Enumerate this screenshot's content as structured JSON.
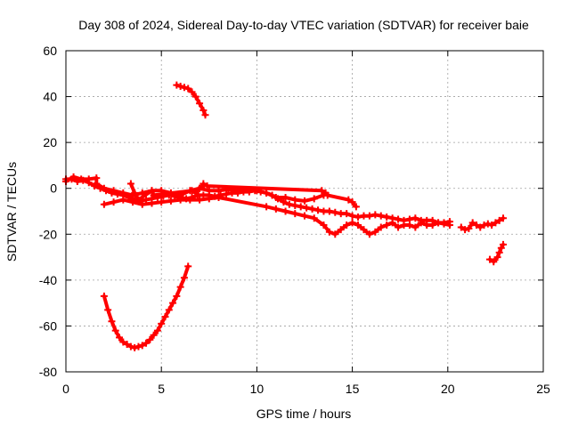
{
  "chart_data": {
    "type": "scatter",
    "title": "Day 308 of 2024, Sidereal Day-to-day VTEC variation (SDTVAR) for receiver baie",
    "xlabel": "GPS time / hours",
    "ylabel": "SDTVAR / TECUs",
    "xlim": [
      0,
      25
    ],
    "ylim": [
      -80,
      60
    ],
    "grid": true,
    "x_ticks": [
      0,
      5,
      10,
      15,
      20,
      25
    ],
    "y_ticks": [
      -80,
      -60,
      -40,
      -20,
      0,
      20,
      40,
      60
    ],
    "marker_color": "#ff0000",
    "series": [
      {
        "name": "main-band",
        "points": [
          [
            0.0,
            4
          ],
          [
            0.3,
            4
          ],
          [
            0.6,
            3
          ],
          [
            0.9,
            3.5
          ],
          [
            1.2,
            2.5
          ],
          [
            1.5,
            1
          ],
          [
            1.8,
            0
          ],
          [
            2.1,
            -1
          ],
          [
            2.4,
            -2
          ],
          [
            2.7,
            -2.5
          ],
          [
            3.0,
            -3
          ],
          [
            3.3,
            -4
          ],
          [
            3.6,
            -5
          ],
          [
            3.9,
            -5.5
          ],
          [
            4.2,
            -5
          ],
          [
            4.5,
            -4.5
          ],
          [
            4.8,
            -4
          ],
          [
            5.1,
            -3.5
          ],
          [
            5.4,
            -3
          ],
          [
            5.7,
            -3.5
          ],
          [
            6.0,
            -4
          ],
          [
            6.3,
            -4.5
          ],
          [
            6.6,
            -4
          ],
          [
            6.9,
            -3
          ],
          [
            7.2,
            -3
          ],
          [
            7.5,
            -3
          ],
          [
            7.8,
            -3.5
          ],
          [
            8.1,
            -3
          ],
          [
            8.4,
            -2.5
          ],
          [
            8.7,
            -2
          ],
          [
            9.0,
            -2
          ],
          [
            9.3,
            -1.5
          ],
          [
            9.6,
            -1.5
          ],
          [
            9.9,
            -1
          ],
          [
            10.2,
            -1.5
          ],
          [
            10.5,
            -2
          ],
          [
            10.8,
            -3
          ],
          [
            11.1,
            -4.5
          ],
          [
            11.4,
            -6
          ],
          [
            11.7,
            -7
          ],
          [
            12.0,
            -7.5
          ],
          [
            12.3,
            -8
          ],
          [
            12.6,
            -8.5
          ],
          [
            12.9,
            -9
          ],
          [
            13.2,
            -9.5
          ],
          [
            13.5,
            -10
          ],
          [
            13.8,
            -10
          ],
          [
            14.1,
            -10.5
          ],
          [
            14.4,
            -11
          ],
          [
            14.7,
            -11
          ],
          [
            15.0,
            -12
          ],
          [
            15.3,
            -12.5
          ],
          [
            15.6,
            -12
          ],
          [
            15.9,
            -12
          ],
          [
            16.2,
            -11.5
          ],
          [
            16.5,
            -12
          ],
          [
            16.8,
            -12.5
          ],
          [
            17.1,
            -13
          ],
          [
            17.4,
            -13.5
          ],
          [
            17.7,
            -14
          ],
          [
            18.0,
            -13.5
          ],
          [
            18.3,
            -13
          ],
          [
            18.6,
            -14
          ],
          [
            18.9,
            -14
          ],
          [
            19.2,
            -14
          ],
          [
            19.5,
            -15
          ],
          [
            19.8,
            -15
          ],
          [
            20.1,
            -14.5
          ]
        ]
      },
      {
        "name": "upper-band",
        "points": [
          [
            0.0,
            3
          ],
          [
            0.4,
            5
          ],
          [
            0.8,
            4
          ],
          [
            1.2,
            4
          ],
          [
            1.6,
            4.5
          ],
          [
            1.6,
            2
          ],
          [
            2.0,
            0
          ],
          [
            2.5,
            -1
          ],
          [
            3.0,
            -2
          ],
          [
            3.5,
            -3
          ],
          [
            4.0,
            -2
          ],
          [
            4.5,
            -1
          ],
          [
            5.0,
            -1
          ],
          [
            5.5,
            -2
          ],
          [
            6.0,
            -3
          ],
          [
            6.5,
            -1
          ],
          [
            7.0,
            0
          ],
          [
            7.5,
            -1
          ],
          [
            8.0,
            -1
          ],
          [
            8.5,
            -0.5
          ],
          [
            9.0,
            -1
          ],
          [
            9.5,
            -0.5
          ],
          [
            10.0,
            -1
          ],
          [
            10.5,
            -2
          ],
          [
            11.0,
            -4
          ],
          [
            11.5,
            -4
          ],
          [
            12.0,
            -5
          ],
          [
            12.5,
            -5.5
          ],
          [
            13.0,
            -4.5
          ],
          [
            13.5,
            -3
          ]
        ]
      },
      {
        "name": "lower-band",
        "points": [
          [
            2.0,
            -7
          ],
          [
            2.5,
            -6
          ],
          [
            3.0,
            -5
          ],
          [
            3.5,
            -6
          ],
          [
            4.0,
            -7
          ],
          [
            4.5,
            -6.5
          ],
          [
            5.0,
            -6
          ],
          [
            5.5,
            -5.5
          ],
          [
            6.0,
            -5
          ],
          [
            6.5,
            -5
          ],
          [
            7.0,
            -5
          ],
          [
            7.5,
            -4.5
          ],
          [
            8.0,
            -4
          ],
          [
            10.5,
            -8
          ],
          [
            11.0,
            -9
          ],
          [
            11.5,
            -10
          ],
          [
            12.0,
            -11
          ],
          [
            12.5,
            -12
          ],
          [
            13.0,
            -13
          ],
          [
            13.5,
            -16
          ],
          [
            13.8,
            -19
          ],
          [
            14.1,
            -20
          ],
          [
            14.4,
            -18
          ],
          [
            14.7,
            -16
          ],
          [
            15.0,
            -15
          ],
          [
            15.3,
            -16
          ],
          [
            15.6,
            -18
          ],
          [
            15.9,
            -20
          ],
          [
            16.2,
            -19
          ],
          [
            16.5,
            -17
          ],
          [
            16.8,
            -16
          ],
          [
            17.1,
            -15
          ],
          [
            17.4,
            -17
          ],
          [
            17.7,
            -16
          ],
          [
            18.0,
            -16
          ],
          [
            18.3,
            -17
          ],
          [
            18.6,
            -15
          ],
          [
            18.9,
            -16
          ],
          [
            19.2,
            -16
          ],
          [
            19.5,
            -15
          ],
          [
            19.8,
            -15.5
          ],
          [
            20.1,
            -16
          ]
        ]
      },
      {
        "name": "wedge-spikes",
        "points": [
          [
            3.4,
            2
          ],
          [
            3.6,
            -2
          ],
          [
            3.8,
            -5
          ],
          [
            4.5,
            -1
          ],
          [
            4.6,
            -3
          ],
          [
            6.6,
            -1
          ],
          [
            6.8,
            -2
          ],
          [
            7.0,
            0
          ],
          [
            7.1,
            0.5
          ],
          [
            7.2,
            2
          ],
          [
            7.4,
            1
          ],
          [
            13.4,
            -1
          ],
          [
            13.6,
            -2
          ],
          [
            13.7,
            -3
          ],
          [
            14.8,
            -5
          ],
          [
            15.0,
            -6
          ],
          [
            15.2,
            -8
          ]
        ]
      },
      {
        "name": "arc-upper",
        "points": [
          [
            5.8,
            45
          ],
          [
            6.0,
            44.5
          ],
          [
            6.2,
            44
          ],
          [
            6.4,
            43.5
          ],
          [
            6.6,
            42
          ],
          [
            6.8,
            40
          ],
          [
            7.0,
            37
          ],
          [
            7.2,
            34
          ],
          [
            7.3,
            32
          ]
        ]
      },
      {
        "name": "arc-lower",
        "points": [
          [
            2.0,
            -47
          ],
          [
            2.2,
            -53
          ],
          [
            2.4,
            -58
          ],
          [
            2.6,
            -62
          ],
          [
            2.8,
            -65
          ],
          [
            3.0,
            -67
          ],
          [
            3.2,
            -68
          ],
          [
            3.4,
            -69
          ],
          [
            3.6,
            -69.5
          ],
          [
            3.8,
            -69
          ],
          [
            4.0,
            -68.5
          ],
          [
            4.2,
            -67.5
          ],
          [
            4.4,
            -66
          ],
          [
            4.6,
            -64
          ],
          [
            4.8,
            -62
          ],
          [
            5.0,
            -59
          ],
          [
            5.2,
            -56
          ],
          [
            5.4,
            -53
          ],
          [
            5.6,
            -50
          ],
          [
            5.8,
            -47
          ],
          [
            6.0,
            -43
          ],
          [
            6.2,
            -39
          ],
          [
            6.4,
            -34
          ]
        ]
      },
      {
        "name": "late-segment",
        "points": [
          [
            20.7,
            -17
          ],
          [
            20.9,
            -18
          ],
          [
            21.1,
            -17.5
          ],
          [
            21.3,
            -15
          ],
          [
            21.5,
            -16
          ],
          [
            21.7,
            -17
          ],
          [
            21.9,
            -16
          ],
          [
            22.1,
            -15.5
          ],
          [
            22.3,
            -16
          ],
          [
            22.5,
            -15
          ],
          [
            22.7,
            -14
          ],
          [
            22.9,
            -13
          ]
        ]
      },
      {
        "name": "late-hook",
        "points": [
          [
            22.2,
            -31
          ],
          [
            22.4,
            -32
          ],
          [
            22.6,
            -30
          ],
          [
            22.7,
            -28
          ],
          [
            22.8,
            -26
          ],
          [
            22.9,
            -24.5
          ]
        ]
      }
    ]
  }
}
